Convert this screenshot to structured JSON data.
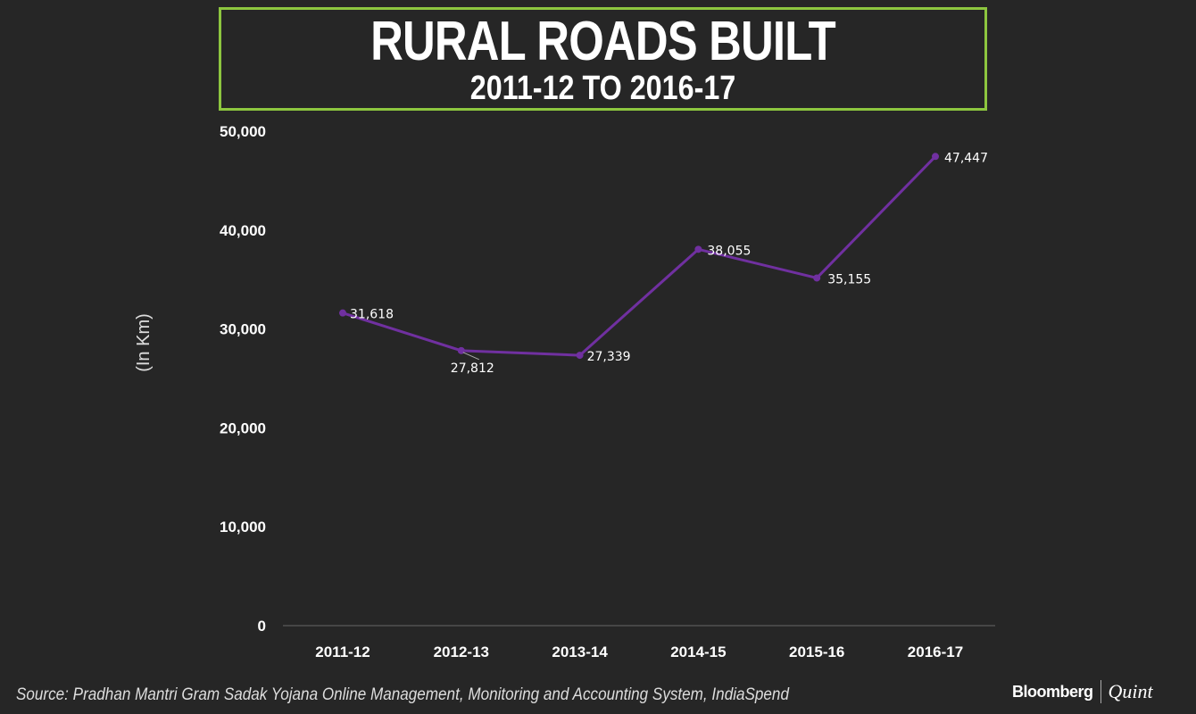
{
  "chart_data": {
    "type": "line",
    "title": "RURAL ROADS BUILT",
    "subtitle": "2011-12 TO 2016-17",
    "ylabel": "(In Km)",
    "xlabel": "",
    "categories": [
      "2011-12",
      "2012-13",
      "2013-14",
      "2014-15",
      "2015-16",
      "2016-17"
    ],
    "values": [
      31618,
      27812,
      27339,
      38055,
      35155,
      47447
    ],
    "data_labels": [
      "31,618",
      "27,812",
      "27,339",
      "38,055",
      "35,155",
      "47,447"
    ],
    "yticks": [
      0,
      10000,
      20000,
      30000,
      40000,
      50000
    ],
    "ytick_labels": [
      "0",
      "10,000",
      "20,000",
      "30,000",
      "40,000",
      "50,000"
    ],
    "ylim": [
      0,
      50000
    ],
    "grid": false,
    "colors": {
      "line": "#7030a0",
      "frame": "#8dc63f",
      "background": "#262626"
    }
  },
  "footer": {
    "source": "Source: Pradhan Mantri Gram Sadak Yojana Online Management, Monitoring and Accounting System, IndiaSpend",
    "logo_left": "Bloomberg",
    "logo_right": "Quint"
  }
}
